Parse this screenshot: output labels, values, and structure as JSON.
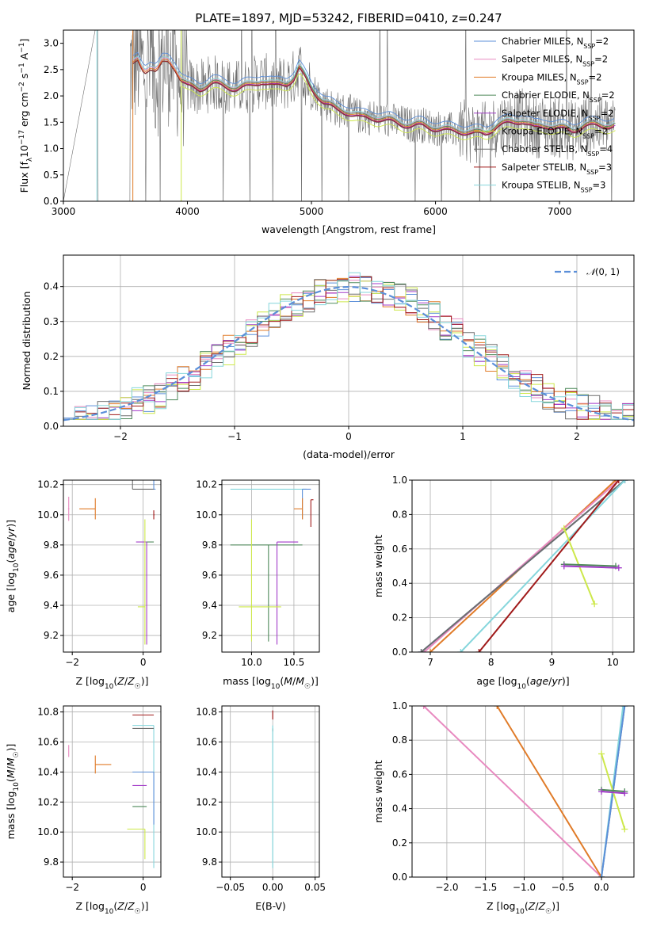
{
  "title": "PLATE=1897, MJD=53242, FIBERID=0410, z=0.247",
  "colors": {
    "Chabrier MILES": "#5b8fd9",
    "Salpeter MILES": "#e88ac0",
    "Kroupa MILES": "#e07b28",
    "Chabrier ELODIE": "#4f8a5b",
    "Salpeter ELODIE": "#a23bc9",
    "Kroupa ELODIE": "#cde84a",
    "Chabrier STELIB": "#6e6e6e",
    "Salpeter STELIB": "#a01a1a",
    "Kroupa STELIB": "#86d6dc",
    "gaussian": "#5b8fd9"
  },
  "chart_data": [
    {
      "id": "spectrum",
      "type": "line",
      "title": "PLATE=1897, MJD=53242, FIBERID=0410, z=0.247",
      "xlabel": "wavelength [Angstrom, rest frame]",
      "ylabel": "Flux [f_λ10^-17 erg cm^-2 s^-1 A^-1]",
      "xlim": [
        3000,
        7600
      ],
      "ylim": [
        0,
        3.25
      ],
      "xticks": [
        "3000",
        "4000",
        "5000",
        "6000",
        "7000"
      ],
      "yticks": [
        "0.0",
        "0.5",
        "1.0",
        "1.5",
        "2.0",
        "2.5",
        "3.0"
      ],
      "grid": false,
      "legend_position": "top-right",
      "legend": [
        {
          "name": "Chabrier MILES",
          "nssp": "2"
        },
        {
          "name": "Salpeter MILES",
          "nssp": "2"
        },
        {
          "name": "Kroupa MILES",
          "nssp": "2"
        },
        {
          "name": "Chabrier ELODIE",
          "nssp": "2"
        },
        {
          "name": "Salpeter ELODIE",
          "nssp": "2"
        },
        {
          "name": "Kroupa ELODIE",
          "nssp": "2"
        },
        {
          "name": "Chabrier STELIB",
          "nssp": "4"
        },
        {
          "name": "Salpeter STELIB",
          "nssp": "3"
        },
        {
          "name": "Kroupa STELIB",
          "nssp": "3"
        }
      ],
      "model_continuum": {
        "x": [
          3560,
          3600,
          3650,
          3700,
          3750,
          3800,
          3850,
          3900,
          3950,
          4000,
          4100,
          4200,
          4300,
          4400,
          4500,
          4600,
          4700,
          4800,
          4860,
          4900,
          4950,
          5000,
          5100,
          5200,
          5300,
          5400,
          5500,
          5600,
          5700,
          5800,
          5900,
          6000,
          6100,
          6200,
          6300,
          6400,
          6500,
          6600,
          6700,
          6800,
          6900,
          7000,
          7100,
          7200,
          7300
        ],
        "y": [
          2.6,
          2.7,
          2.5,
          2.55,
          2.45,
          2.65,
          2.7,
          2.55,
          2.3,
          2.2,
          2.15,
          2.25,
          2.2,
          2.15,
          2.2,
          2.3,
          2.2,
          2.25,
          2.35,
          2.55,
          2.35,
          2.15,
          1.9,
          1.75,
          1.7,
          1.6,
          1.6,
          1.55,
          1.5,
          1.45,
          1.45,
          1.4,
          1.35,
          1.35,
          1.3,
          1.3,
          1.45,
          1.5,
          1.55,
          1.4,
          1.45,
          1.4,
          1.35,
          1.45,
          1.45
        ]
      }
    },
    {
      "id": "residual-histogram",
      "type": "bar",
      "xlabel": "(data-model)/error",
      "ylabel": "Normed distribution",
      "xlim": [
        -2.5,
        2.5
      ],
      "ylim": [
        0,
        0.49
      ],
      "xticks": [
        "−2",
        "−1",
        "0",
        "1",
        "2"
      ],
      "yticks": [
        "0.0",
        "0.1",
        "0.2",
        "0.3",
        "0.4"
      ],
      "grid": true,
      "legend_position": "top-right",
      "gaussian_label": "N(0,1)",
      "bin_width": 0.1,
      "bin_start": -2.5,
      "base_distribution": [
        0.045,
        0.05,
        0.06,
        0.07,
        0.075,
        0.085,
        0.095,
        0.11,
        0.13,
        0.14,
        0.16,
        0.17,
        0.17,
        0.19,
        0.21,
        0.22,
        0.24,
        0.25,
        0.27,
        0.3,
        0.29,
        0.3,
        0.32,
        0.33,
        0.35,
        0.37,
        0.38,
        0.36,
        0.39,
        0.38,
        0.4,
        0.39,
        0.4,
        0.42,
        0.4,
        0.37,
        0.36,
        0.35,
        0.34,
        0.32,
        0.3,
        0.29,
        0.27,
        0.25,
        0.24,
        0.22,
        0.21,
        0.19,
        0.17,
        0.16,
        0.15,
        0.14,
        0.12,
        0.11,
        0.1,
        0.09,
        0.08,
        0.07,
        0.06,
        0.055,
        0.05,
        0.045,
        0.04,
        0.035,
        0.03,
        0.03,
        0.025,
        0.025,
        0.02,
        0.02,
        0.02,
        0.02,
        0.015,
        0.015,
        0.015,
        0.015,
        0.01,
        0.01,
        0.01,
        0.01,
        0.01,
        0.01,
        0.01,
        0.01,
        0.01,
        0.01,
        0.01,
        0.01,
        0.01,
        0.01,
        0.01,
        0.01,
        0.01,
        0.01,
        0.01,
        0.01,
        0.01,
        0.01,
        0.01,
        0.01
      ]
    },
    {
      "id": "age-vs-z",
      "type": "scatter",
      "xlabel": "Z [log10(Z/Z☉)]",
      "ylabel": "age  [log10(age/yr)]",
      "xlim": [
        -2.25,
        0.5
      ],
      "ylim": [
        9.09,
        10.23
      ],
      "xticks": [
        "−2",
        "0"
      ],
      "yticks": [
        "9.2",
        "9.4",
        "9.6",
        "9.8",
        "10.0",
        "10.2"
      ],
      "grid": true,
      "points": [
        {
          "series": "Salpeter MILES",
          "x": -2.1,
          "y": 10.04,
          "xerr": [
            0.02,
            0.02
          ],
          "yerr": [
            0.08,
            0.08
          ]
        },
        {
          "series": "Kroupa MILES",
          "x": -1.35,
          "y": 10.04,
          "xerr": [
            0.45,
            0.0
          ],
          "yerr": [
            0.07,
            0.07
          ]
        },
        {
          "series": "Chabrier MILES",
          "x": 0.3,
          "y": 10.17,
          "xerr": [
            0.0,
            0.05
          ],
          "yerr": [
            0.0,
            0.2
          ]
        },
        {
          "series": "Chabrier STELIB",
          "x": -0.3,
          "y": 10.17,
          "xerr": [
            0.0,
            0.6
          ],
          "yerr": [
            0.0,
            0.17
          ]
        },
        {
          "series": "Salpeter STELIB",
          "x": 0.3,
          "y": 10.0,
          "xerr": [
            0.0,
            0.02
          ],
          "yerr": [
            0.03,
            0.03
          ]
        },
        {
          "series": "Salpeter ELODIE",
          "x": 0.1,
          "y": 9.82,
          "xerr": [
            0.3,
            0.0
          ],
          "yerr": [
            0.68,
            0.0
          ]
        },
        {
          "series": "Chabrier ELODIE",
          "x": 0.1,
          "y": 9.82,
          "xerr": [
            0.0,
            0.2
          ],
          "yerr": [
            0.0,
            0.0
          ]
        },
        {
          "series": "Kroupa ELODIE",
          "x": 0.05,
          "y": 9.39,
          "xerr": [
            0.2,
            0.0
          ],
          "yerr": [
            0.25,
            0.58
          ]
        }
      ]
    },
    {
      "id": "age-vs-mass",
      "type": "scatter",
      "xlabel": "mass [log10(M/M☉)]",
      "ylabel": "",
      "xlim": [
        9.65,
        10.8
      ],
      "ylim": [
        9.09,
        10.23
      ],
      "xticks": [
        "10.0",
        "10.5"
      ],
      "yticks": [
        "9.2",
        "9.4",
        "9.6",
        "9.8",
        "10.0",
        "10.2"
      ],
      "grid": true,
      "points": [
        {
          "series": "Kroupa STELIB",
          "x": 9.75,
          "y": 10.17,
          "xerr": [
            0.0,
            0.9
          ],
          "yerr": [
            0.0,
            0.0
          ]
        },
        {
          "series": "Chabrier MILES",
          "x": 10.6,
          "y": 10.17,
          "xerr": [
            0.0,
            0.1
          ],
          "yerr": [
            0.2,
            0.0
          ]
        },
        {
          "series": "Salpeter STELIB",
          "x": 10.7,
          "y": 10.1,
          "xerr": [
            0.0,
            0.03
          ],
          "yerr": [
            0.18,
            0.0
          ]
        },
        {
          "series": "Kroupa MILES",
          "x": 10.6,
          "y": 10.04,
          "xerr": [
            0.1,
            0.0
          ],
          "yerr": [
            0.07,
            0.07
          ]
        },
        {
          "series": "Chabrier ELODIE",
          "x": 10.2,
          "y": 9.8,
          "xerr": [
            0.45,
            0.4
          ],
          "yerr": [
            0.64,
            0.0
          ]
        },
        {
          "series": "Salpeter ELODIE",
          "x": 10.3,
          "y": 9.82,
          "xerr": [
            0.0,
            0.25
          ],
          "yerr": [
            0.68,
            0.0
          ]
        },
        {
          "series": "Kroupa ELODIE",
          "x": 10.0,
          "y": 9.39,
          "xerr": [
            0.15,
            0.35
          ],
          "yerr": [
            0.23,
            0.58
          ]
        }
      ]
    },
    {
      "id": "weight-vs-age",
      "type": "line",
      "xlabel": "age  [log10(age/yr)]",
      "ylabel": "mass weight",
      "xlim": [
        6.7,
        10.35
      ],
      "ylim": [
        0,
        1
      ],
      "xticks": [
        "7",
        "8",
        "9",
        "10"
      ],
      "yticks": [
        "0.0",
        "0.2",
        "0.4",
        "0.6",
        "0.8",
        "1.0"
      ],
      "grid": true,
      "series": [
        {
          "name": "Kroupa MILES",
          "x": [
            7.0,
            10.05
          ],
          "y": [
            0.0,
            1.0
          ]
        },
        {
          "name": "Salpeter MILES",
          "x": [
            6.9,
            10.1
          ],
          "y": [
            0.0,
            1.0
          ]
        },
        {
          "name": "Chabrier MILES",
          "x": [
            6.85,
            10.2
          ],
          "y": [
            0.0,
            1.0
          ]
        },
        {
          "name": "Chabrier STELIB",
          "x": [
            6.85,
            10.2
          ],
          "y": [
            0.0,
            1.0
          ]
        },
        {
          "name": "Kroupa STELIB",
          "x": [
            7.5,
            10.2
          ],
          "y": [
            0.0,
            1.0
          ]
        },
        {
          "name": "Salpeter STELIB",
          "x": [
            7.8,
            10.1
          ],
          "y": [
            0.0,
            1.0
          ]
        },
        {
          "name": "Kroupa ELODIE",
          "x": [
            9.2,
            9.7
          ],
          "y": [
            0.72,
            0.28
          ]
        },
        {
          "name": "Chabrier ELODIE",
          "x": [
            9.2,
            10.05
          ],
          "y": [
            0.51,
            0.5
          ]
        },
        {
          "name": "Salpeter ELODIE",
          "x": [
            9.2,
            10.1
          ],
          "y": [
            0.5,
            0.49
          ]
        }
      ]
    },
    {
      "id": "mass-vs-z",
      "type": "scatter",
      "xlabel": "Z [log10(Z/Z☉)]",
      "ylabel": "mass [log10(M/M☉)]",
      "xlim": [
        -2.25,
        0.5
      ],
      "ylim": [
        9.7,
        10.84
      ],
      "xticks": [
        "−2",
        "0"
      ],
      "yticks": [
        "9.8",
        "10.0",
        "10.2",
        "10.4",
        "10.6",
        "10.8"
      ],
      "grid": true,
      "points": [
        {
          "series": "Salpeter MILES",
          "x": -2.1,
          "y": 10.54,
          "xerr": [
            0.0,
            0.0
          ],
          "yerr": [
            0.04,
            0.04
          ]
        },
        {
          "series": "Kroupa MILES",
          "x": -1.35,
          "y": 10.45,
          "xerr": [
            0.0,
            0.45
          ],
          "yerr": [
            0.06,
            0.06
          ]
        },
        {
          "series": "Salpeter STELIB",
          "x": 0.3,
          "y": 10.78,
          "xerr": [
            0.6,
            0.0
          ],
          "yerr": [
            0.0,
            0.0
          ]
        },
        {
          "series": "Kroupa STELIB",
          "x": 0.3,
          "y": 10.71,
          "xerr": [
            0.6,
            0.0
          ],
          "yerr": [
            0.95,
            0.0
          ]
        },
        {
          "series": "Chabrier STELIB",
          "x": 0.3,
          "y": 10.69,
          "xerr": [
            0.6,
            0.0
          ],
          "yerr": [
            0.0,
            0.0
          ]
        },
        {
          "series": "Chabrier MILES",
          "x": 0.3,
          "y": 10.4,
          "xerr": [
            0.6,
            0.0
          ],
          "yerr": [
            0.35,
            0.0
          ]
        },
        {
          "series": "Salpeter ELODIE",
          "x": 0.1,
          "y": 10.31,
          "xerr": [
            0.4,
            0.0
          ],
          "yerr": [
            0.0,
            0.0
          ]
        },
        {
          "series": "Chabrier ELODIE",
          "x": 0.1,
          "y": 10.17,
          "xerr": [
            0.4,
            0.0
          ],
          "yerr": [
            0.0,
            0.0
          ]
        },
        {
          "series": "Kroupa ELODIE",
          "x": 0.05,
          "y": 10.02,
          "xerr": [
            0.5,
            0.0
          ],
          "yerr": [
            0.2,
            0.0
          ]
        }
      ]
    },
    {
      "id": "mass-vs-ebv",
      "type": "scatter",
      "xlabel": "E(B-V)",
      "ylabel": "",
      "xlim": [
        -0.06,
        0.055
      ],
      "ylim": [
        9.7,
        10.84
      ],
      "xticks": [
        "−0.05",
        "0.00",
        "0.05"
      ],
      "yticks": [
        "9.8",
        "10.0",
        "10.2",
        "10.4",
        "10.6",
        "10.8"
      ],
      "grid": true,
      "points": [
        {
          "series": "Salpeter STELIB",
          "x": 0.0,
          "y": 10.78,
          "xerr": [
            0.0,
            0.0
          ],
          "yerr": [
            0.03,
            0.03
          ]
        },
        {
          "series": "Chabrier STELIB",
          "x": 0.0,
          "y": 10.69,
          "xerr": [
            0.0,
            0.0
          ],
          "yerr": [
            0.02,
            0.0
          ]
        },
        {
          "series": "Kroupa STELIB",
          "x": 0.0,
          "y": 10.71,
          "xerr": [
            0.0,
            0.0
          ],
          "yerr": [
            0.95,
            0.0
          ]
        }
      ]
    },
    {
      "id": "weight-vs-z",
      "type": "line",
      "xlabel": "Z [log10(Z/Z☉)]",
      "ylabel": "mass weight",
      "xlim": [
        -2.45,
        0.42
      ],
      "ylim": [
        0,
        1
      ],
      "xticks": [
        "−2.0",
        "−1.5",
        "−1.0",
        "−0.5",
        "0.0"
      ],
      "yticks": [
        "0.0",
        "0.2",
        "0.4",
        "0.6",
        "0.8",
        "1.0"
      ],
      "grid": true,
      "series": [
        {
          "name": "Salpeter MILES",
          "x": [
            -2.3,
            0.0
          ],
          "y": [
            1.0,
            0.0
          ]
        },
        {
          "name": "Kroupa MILES",
          "x": [
            -1.35,
            0.0
          ],
          "y": [
            1.0,
            0.0
          ]
        },
        {
          "name": "Chabrier STELIB",
          "x": [
            0.0,
            0.3
          ],
          "y": [
            0.0,
            1.0
          ]
        },
        {
          "name": "Kroupa STELIB",
          "x": [
            0.0,
            0.28
          ],
          "y": [
            0.0,
            1.0
          ]
        },
        {
          "name": "Chabrier MILES",
          "x": [
            0.0,
            0.3
          ],
          "y": [
            0.0,
            1.0
          ]
        },
        {
          "name": "Kroupa ELODIE",
          "x": [
            0.0,
            0.3
          ],
          "y": [
            0.72,
            0.28
          ]
        },
        {
          "name": "Chabrier ELODIE",
          "x": [
            0.0,
            0.3
          ],
          "y": [
            0.51,
            0.5
          ]
        },
        {
          "name": "Salpeter ELODIE",
          "x": [
            0.0,
            0.3
          ],
          "y": [
            0.5,
            0.49
          ]
        }
      ]
    }
  ]
}
